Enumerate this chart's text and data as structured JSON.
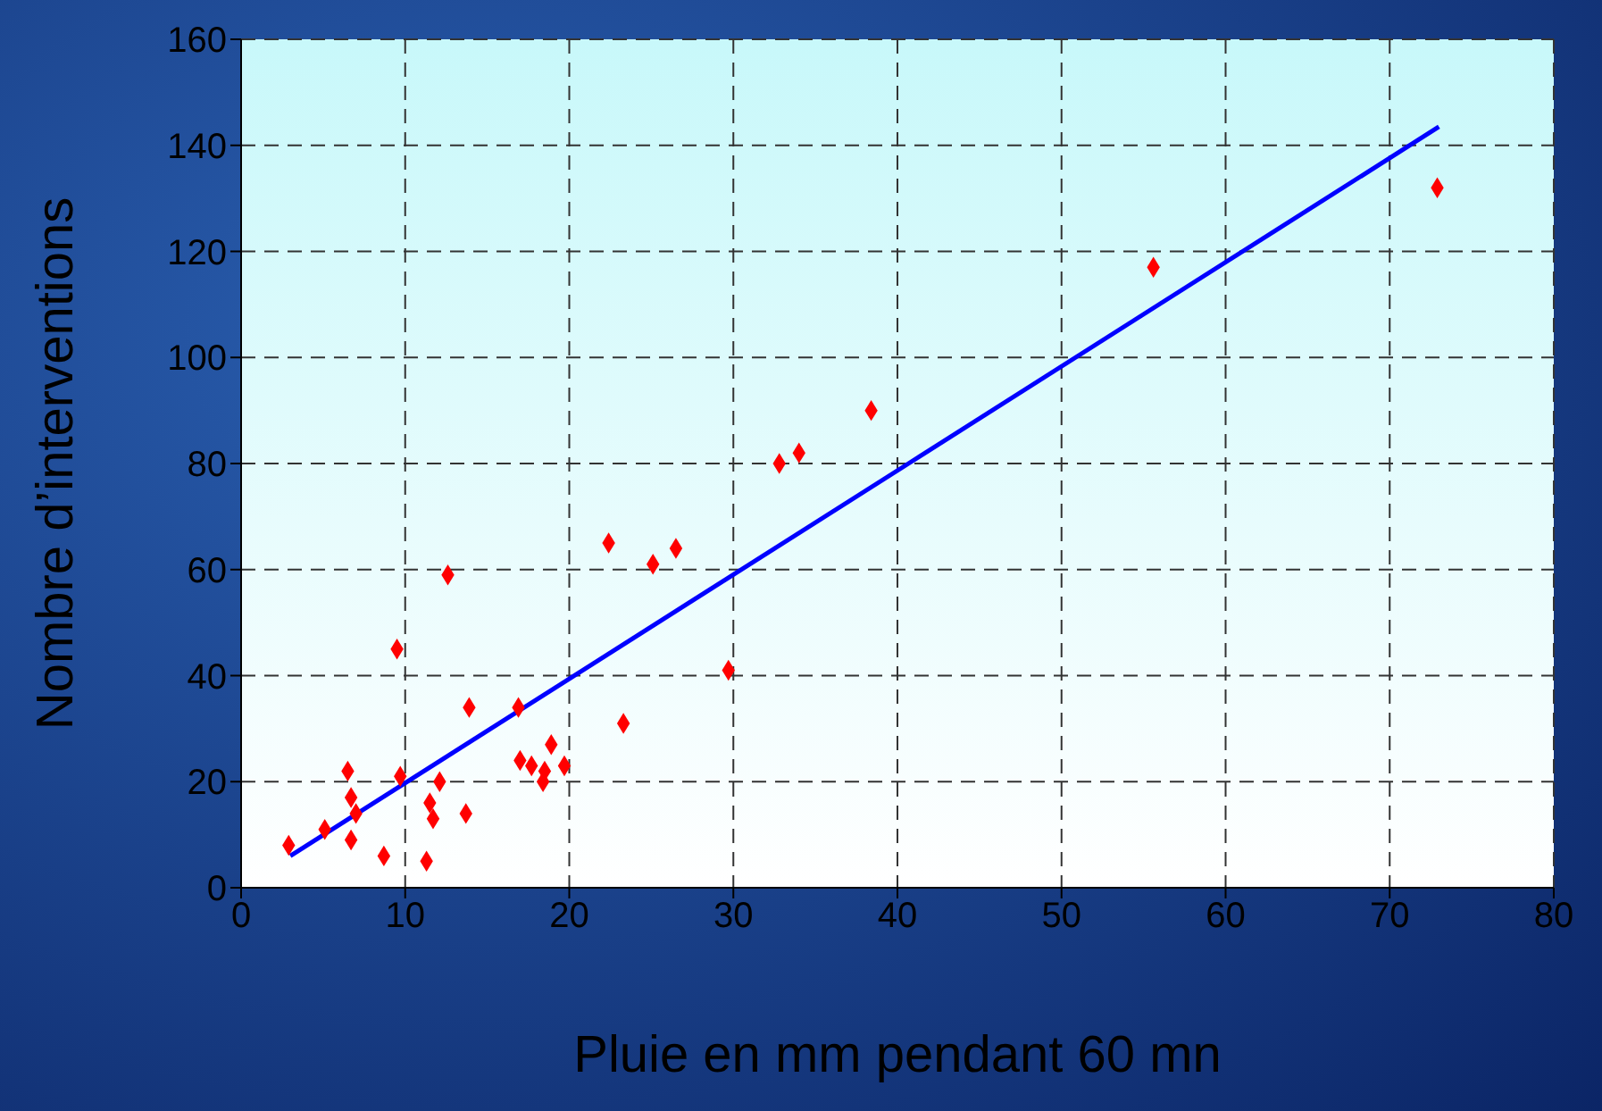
{
  "chart_data": {
    "type": "scatter",
    "xlabel": "Pluie en mm pendant 60 mn",
    "ylabel": "Nombre d’interventions",
    "xlim": [
      0,
      80
    ],
    "ylim": [
      0,
      160
    ],
    "xticks": [
      0,
      10,
      20,
      30,
      40,
      50,
      60,
      70,
      80
    ],
    "yticks": [
      0,
      20,
      40,
      60,
      80,
      100,
      120,
      140,
      160
    ],
    "grid": true,
    "series": [
      {
        "marker": "diamond",
        "color": "#ff0000",
        "x": [
          2.9,
          5.1,
          6.5,
          6.7,
          6.7,
          7.0,
          8.7,
          9.5,
          9.7,
          11.3,
          11.5,
          11.7,
          12.1,
          12.6,
          13.7,
          13.9,
          16.9,
          17.0,
          17.7,
          18.4,
          18.5,
          18.9,
          19.7,
          22.4,
          23.3,
          25.1,
          26.5,
          29.7,
          32.8,
          34.0,
          38.4,
          55.6,
          72.9
        ],
        "values": [
          8,
          11,
          22,
          17,
          9,
          14,
          6,
          45,
          21,
          5,
          16,
          13,
          20,
          59,
          14,
          34,
          34,
          24,
          23,
          20,
          22,
          27,
          23,
          65,
          31,
          61,
          64,
          41,
          80,
          82,
          90,
          117,
          132
        ]
      },
      {
        "type": "line",
        "marker": "none",
        "color": "#0000ff",
        "x": [
          3,
          73
        ],
        "values": [
          6,
          143.5
        ]
      }
    ]
  }
}
